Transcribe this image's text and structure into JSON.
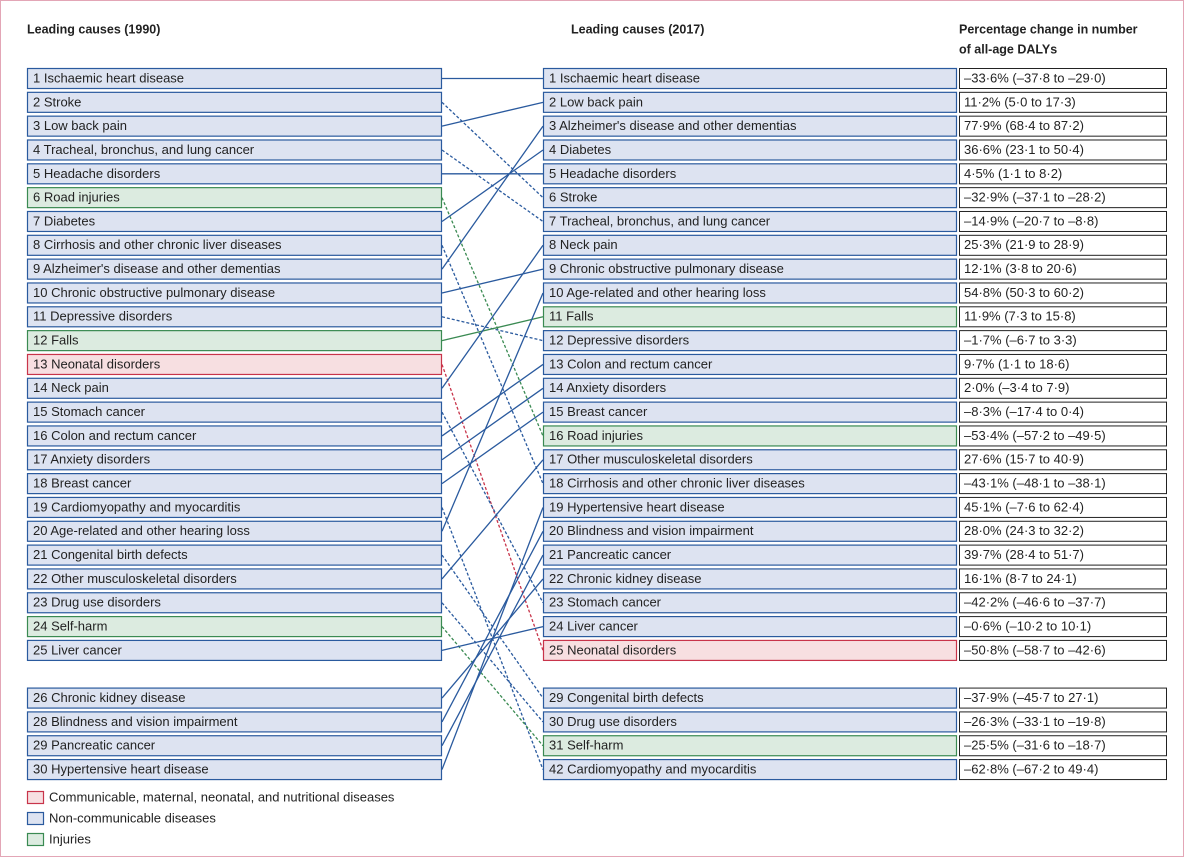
{
  "header": {
    "left_title": "Leading causes (1990)",
    "right_title": "Leading causes (2017)",
    "change_title": [
      "Percentage change in number",
      "of all-age DALYs"
    ]
  },
  "legend": [
    {
      "label": "Communicable, maternal, neonatal, and nutritional diseases",
      "color": "#c8344a",
      "fill": "#f7dfe1"
    },
    {
      "label": "Non-communicable diseases",
      "color": "#2a5a9e",
      "fill": "#dde3f1"
    },
    {
      "label": "Injuries",
      "color": "#3a8a52",
      "fill": "#dcebe0"
    }
  ],
  "left": [
    {
      "label": "1 Ischaemic heart disease",
      "group": 1
    },
    {
      "label": "2 Stroke",
      "group": 1
    },
    {
      "label": "3 Low back pain",
      "group": 1
    },
    {
      "label": "4 Tracheal, bronchus, and lung cancer",
      "group": 1
    },
    {
      "label": "5 Headache disorders",
      "group": 1
    },
    {
      "label": "6 Road injuries",
      "group": 2
    },
    {
      "label": "7 Diabetes",
      "group": 1
    },
    {
      "label": "8 Cirrhosis and other chronic liver diseases",
      "group": 1
    },
    {
      "label": "9 Alzheimer's disease and other dementias",
      "group": 1
    },
    {
      "label": "10 Chronic obstructive pulmonary disease",
      "group": 1
    },
    {
      "label": "11 Depressive disorders",
      "group": 1
    },
    {
      "label": "12 Falls",
      "group": 2
    },
    {
      "label": "13 Neonatal disorders",
      "group": 0
    },
    {
      "label": "14 Neck pain",
      "group": 1
    },
    {
      "label": "15 Stomach cancer",
      "group": 1
    },
    {
      "label": "16 Colon and rectum cancer",
      "group": 1
    },
    {
      "label": "17 Anxiety disorders",
      "group": 1
    },
    {
      "label": "18 Breast cancer",
      "group": 1
    },
    {
      "label": "19 Cardiomyopathy and myocarditis",
      "group": 1
    },
    {
      "label": "20 Age-related and other hearing loss",
      "group": 1
    },
    {
      "label": "21 Congenital birth defects",
      "group": 1
    },
    {
      "label": "22 Other musculoskeletal disorders",
      "group": 1
    },
    {
      "label": "23 Drug use disorders",
      "group": 1
    },
    {
      "label": "24 Self-harm",
      "group": 2
    },
    {
      "label": "25 Liver cancer",
      "group": 1
    },
    {
      "label": "26 Chronic kidney disease",
      "group": 1
    },
    {
      "label": "28 Blindness and vision impairment",
      "group": 1
    },
    {
      "label": "29 Pancreatic cancer",
      "group": 1
    },
    {
      "label": "30 Hypertensive heart disease",
      "group": 1
    }
  ],
  "right": [
    {
      "label": "1 Ischaemic heart disease",
      "group": 1,
      "change": "–33·6% (–37·8 to –29·0)"
    },
    {
      "label": "2 Low back pain",
      "group": 1,
      "change": "11·2% (5·0 to 17·3)"
    },
    {
      "label": "3 Alzheimer's disease and other dementias",
      "group": 1,
      "change": "77·9% (68·4 to 87·2)"
    },
    {
      "label": "4 Diabetes",
      "group": 1,
      "change": "36·6% (23·1 to 50·4)"
    },
    {
      "label": "5 Headache disorders",
      "group": 1,
      "change": "4·5% (1·1 to 8·2)"
    },
    {
      "label": "6 Stroke",
      "group": 1,
      "change": "–32·9% (–37·1 to –28·2)"
    },
    {
      "label": "7 Tracheal, bronchus, and lung cancer",
      "group": 1,
      "change": "–14·9% (–20·7 to –8·8)"
    },
    {
      "label": "8 Neck pain",
      "group": 1,
      "change": "25·3% (21·9 to 28·9)"
    },
    {
      "label": "9 Chronic obstructive pulmonary disease",
      "group": 1,
      "change": "12·1% (3·8 to 20·6)"
    },
    {
      "label": "10 Age-related and other hearing loss",
      "group": 1,
      "change": "54·8% (50·3 to 60·2)"
    },
    {
      "label": "11 Falls",
      "group": 2,
      "change": "11·9% (7·3 to 15·8)"
    },
    {
      "label": "12 Depressive disorders",
      "group": 1,
      "change": "–1·7% (–6·7 to 3·3)"
    },
    {
      "label": "13 Colon and rectum cancer",
      "group": 1,
      "change": "9·7% (1·1 to 18·6)"
    },
    {
      "label": "14 Anxiety disorders",
      "group": 1,
      "change": "2·0% (–3·4 to 7·9)"
    },
    {
      "label": "15 Breast cancer",
      "group": 1,
      "change": "–8·3% (–17·4 to 0·4)"
    },
    {
      "label": "16 Road injuries",
      "group": 2,
      "change": "–53·4% (–57·2 to –49·5)"
    },
    {
      "label": "17 Other musculoskeletal disorders",
      "group": 1,
      "change": "27·6% (15·7 to 40·9)"
    },
    {
      "label": "18 Cirrhosis and other chronic liver diseases",
      "group": 1,
      "change": "–43·1% (–48·1 to –38·1)"
    },
    {
      "label": "19 Hypertensive heart disease",
      "group": 1,
      "change": "45·1% (–7·6 to 62·4)"
    },
    {
      "label": "20 Blindness and vision impairment",
      "group": 1,
      "change": "28·0% (24·3 to 32·2)"
    },
    {
      "label": "21 Pancreatic cancer",
      "group": 1,
      "change": "39·7% (28·4 to 51·7)"
    },
    {
      "label": "22 Chronic kidney disease",
      "group": 1,
      "change": "16·1% (8·7 to 24·1)"
    },
    {
      "label": "23 Stomach cancer",
      "group": 1,
      "change": "–42·2% (–46·6 to –37·7)"
    },
    {
      "label": "24 Liver cancer",
      "group": 1,
      "change": "–0·6% (–10·2 to 10·1)"
    },
    {
      "label": "25 Neonatal disorders",
      "group": 0,
      "change": "–50·8% (–58·7 to –42·6)"
    },
    {
      "label": "29 Congenital birth defects",
      "group": 1,
      "change": "–37·9% (–45·7 to 27·1)"
    },
    {
      "label": "30 Drug use disorders",
      "group": 1,
      "change": "–26·3% (–33·1 to –19·8)"
    },
    {
      "label": "31 Self-harm",
      "group": 2,
      "change": "–25·5% (–31·6 to –18·7)"
    },
    {
      "label": "42 Cardiomyopathy and myocarditis",
      "group": 1,
      "change": "–62·8% (–67·2 to 49·4)"
    }
  ]
}
